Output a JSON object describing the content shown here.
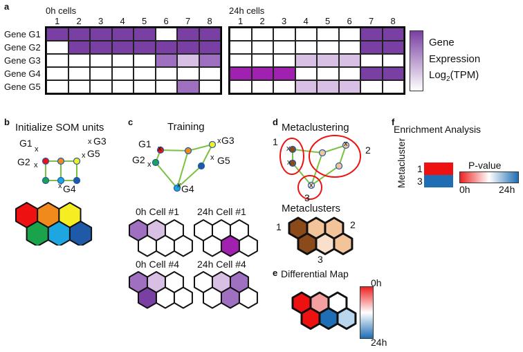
{
  "panels": {
    "a": "a",
    "b": "b",
    "c": "c",
    "d": "d",
    "e": "e",
    "f": "f"
  },
  "colors": {
    "deep_purple": "#7a3fa2",
    "mid_purple": "#a070c0",
    "light_purple": "#d8c0e4",
    "magenta": "#a020b0",
    "red": "#ee1111",
    "orange": "#f08a1d",
    "yellow": "#f6ee22",
    "green": "#1aa34a",
    "sky": "#1ea6e0",
    "navy": "#1f5aa8",
    "brown": "#8a4a1a",
    "peach": "#f3c39a",
    "light_peach": "#f8e0cc",
    "line_green": "#7ac142",
    "blue_scale": "#1f6eb4"
  },
  "panel_a": {
    "group0_title": "0h cells",
    "group24_title": "24h cells",
    "columns": [
      "1",
      "2",
      "3",
      "4",
      "5",
      "6",
      "7",
      "8"
    ],
    "genes": [
      "Gene G1",
      "Gene G2",
      "Gene G3",
      "Gene G4",
      "Gene G5"
    ],
    "matrix_0h": [
      [
        "d",
        "d",
        "d",
        "d",
        "d",
        "w",
        "d",
        "d"
      ],
      [
        "w",
        "d",
        "d",
        "d",
        "d",
        "d",
        "d",
        "d"
      ],
      [
        "w",
        "w",
        "w",
        "w",
        "w",
        "m",
        "l",
        "m"
      ],
      [
        "w",
        "w",
        "w",
        "w",
        "w",
        "w",
        "w",
        "w"
      ],
      [
        "w",
        "w",
        "w",
        "w",
        "w",
        "w",
        "m",
        "w"
      ]
    ],
    "matrix_24h": [
      [
        "w",
        "w",
        "w",
        "w",
        "w",
        "w",
        "d",
        "d"
      ],
      [
        "w",
        "w",
        "w",
        "w",
        "w",
        "w",
        "d",
        "d"
      ],
      [
        "w",
        "w",
        "w",
        "l",
        "l",
        "l",
        "w",
        "w"
      ],
      [
        "g",
        "g",
        "g",
        "w",
        "w",
        "w",
        "d",
        "d"
      ],
      [
        "w",
        "w",
        "w",
        "l",
        "l",
        "l",
        "w",
        "w"
      ]
    ],
    "legend_line1": "Gene",
    "legend_line2": "Expression",
    "legend_line3": "Log",
    "legend_sub": "2",
    "legend_tail": "(TPM)"
  },
  "panel_b": {
    "title": "Initialize SOM units",
    "genes": [
      "G1",
      "G2",
      "G3",
      "G5",
      "G4"
    ],
    "marker": "x"
  },
  "panel_c": {
    "title": "Training",
    "genes": [
      "G1",
      "G2",
      "G3",
      "G5",
      "G4"
    ],
    "marker": "x",
    "cell_labels": [
      "0h Cell #1",
      "24h Cell #1",
      "0h Cell #4",
      "24h Cell #4"
    ]
  },
  "panel_d": {
    "title": "Metaclustering",
    "cluster_ids": [
      "1",
      "2",
      "3"
    ],
    "marker": "x",
    "metaclusters_title": "Metaclusters"
  },
  "panel_e": {
    "title": "Differential Map",
    "scale_top": "0h",
    "scale_bottom": "24h"
  },
  "panel_f": {
    "title": "Enrichment Analysis",
    "axis_label": "Metacluster",
    "row1": "1",
    "row3": "3",
    "pvalue_title": "P-value",
    "scale_left": "0h",
    "scale_right": "24h"
  }
}
